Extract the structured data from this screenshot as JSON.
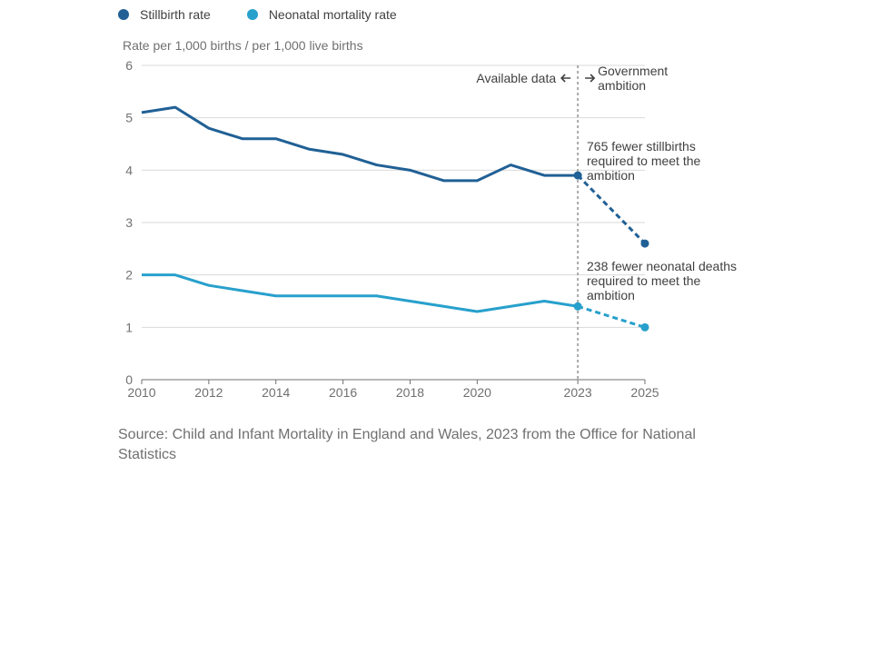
{
  "colors": {
    "stillbirth": "#206095",
    "neonatal": "#27a0cc",
    "grid": "#d9d9d9",
    "axis": "#707071",
    "divider": "#a8a8a8"
  },
  "legend": {
    "stillbirth_label": "Stillbirth rate",
    "neonatal_label": "Neonatal mortality rate"
  },
  "axis_title": "Rate per 1,000 births / per 1,000 live births",
  "annotations": {
    "available": "Available data",
    "ambition_line1": "Government",
    "ambition_line2": "ambition",
    "stillbirth_note": [
      "765 fewer stillbirths",
      "required to meet the",
      "ambition"
    ],
    "neonatal_note": [
      "238 fewer neonatal deaths",
      "required to meet the",
      "ambition"
    ]
  },
  "source": "Source: Child and Infant Mortality in England and Wales, 2023 from the Office for National Statistics",
  "chart_data": {
    "type": "line",
    "xlim": [
      2010,
      2025
    ],
    "ylim": [
      0,
      6
    ],
    "x_ticks": [
      2010,
      2012,
      2014,
      2016,
      2018,
      2020,
      2023,
      2025
    ],
    "y_ticks": [
      0,
      1,
      2,
      3,
      4,
      5,
      6
    ],
    "ylabel": "Rate per 1,000 births / per 1,000 live births",
    "divider_x": 2023,
    "series": [
      {
        "name": "Stillbirth rate",
        "key": "stillbirth",
        "x": [
          2010,
          2011,
          2012,
          2013,
          2014,
          2015,
          2016,
          2017,
          2018,
          2019,
          2020,
          2021,
          2022,
          2023
        ],
        "values": [
          5.1,
          5.2,
          4.8,
          4.6,
          4.6,
          4.4,
          4.3,
          4.1,
          4.0,
          3.8,
          3.8,
          4.1,
          3.9,
          3.9
        ],
        "projection": {
          "x": [
            2023,
            2025
          ],
          "values": [
            3.9,
            2.6
          ]
        }
      },
      {
        "name": "Neonatal mortality rate",
        "key": "neonatal",
        "x": [
          2010,
          2011,
          2012,
          2013,
          2014,
          2015,
          2016,
          2017,
          2018,
          2019,
          2020,
          2021,
          2022,
          2023
        ],
        "values": [
          2.0,
          2.0,
          1.8,
          1.7,
          1.6,
          1.6,
          1.6,
          1.6,
          1.5,
          1.4,
          1.3,
          1.4,
          1.5,
          1.4
        ],
        "projection": {
          "x": [
            2023,
            2025
          ],
          "values": [
            1.4,
            1.0
          ]
        }
      }
    ]
  }
}
